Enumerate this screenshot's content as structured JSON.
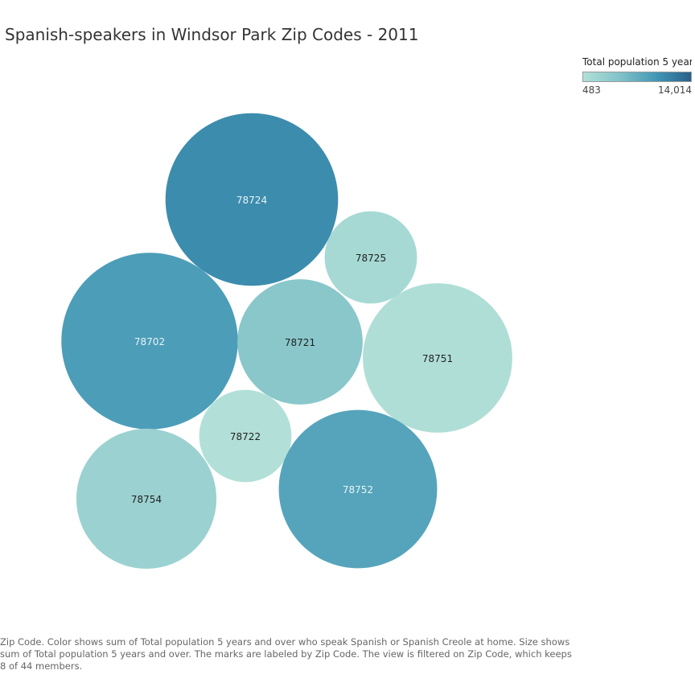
{
  "chart_data": {
    "type": "packed-bubble",
    "title": "Spanish-speakers in Windsor Park Zip Codes - 2011",
    "color_legend": {
      "title": "Total population 5 year..",
      "min_label": "483",
      "max_label": "14,014",
      "min_value": 483,
      "max_value": 14014,
      "min_color": "#b2e0d8",
      "max_color": "#2a5f8a"
    },
    "bubbles": [
      {
        "zip": "78724",
        "size": 22000,
        "color_value": 10600
      },
      {
        "zip": "78725",
        "size": 6300,
        "color_value": 1600
      },
      {
        "zip": "78702",
        "size": 23000,
        "color_value": 9000
      },
      {
        "zip": "78721",
        "size": 11600,
        "color_value": 4300
      },
      {
        "zip": "78751",
        "size": 16500,
        "color_value": 800
      },
      {
        "zip": "78722",
        "size": 6300,
        "color_value": 483
      },
      {
        "zip": "78754",
        "size": 14500,
        "color_value": 2600
      },
      {
        "zip": "78752",
        "size": 18500,
        "color_value": 8300
      }
    ],
    "caption": "Zip Code.  Color shows sum of Total population 5 years and over who speak Spanish or Spanish Creole at home.  Size shows sum of Total population 5 years and over.  The marks are labeled by Zip Code. The view is filtered on Zip Code, which keeps 8 of 44 members."
  }
}
